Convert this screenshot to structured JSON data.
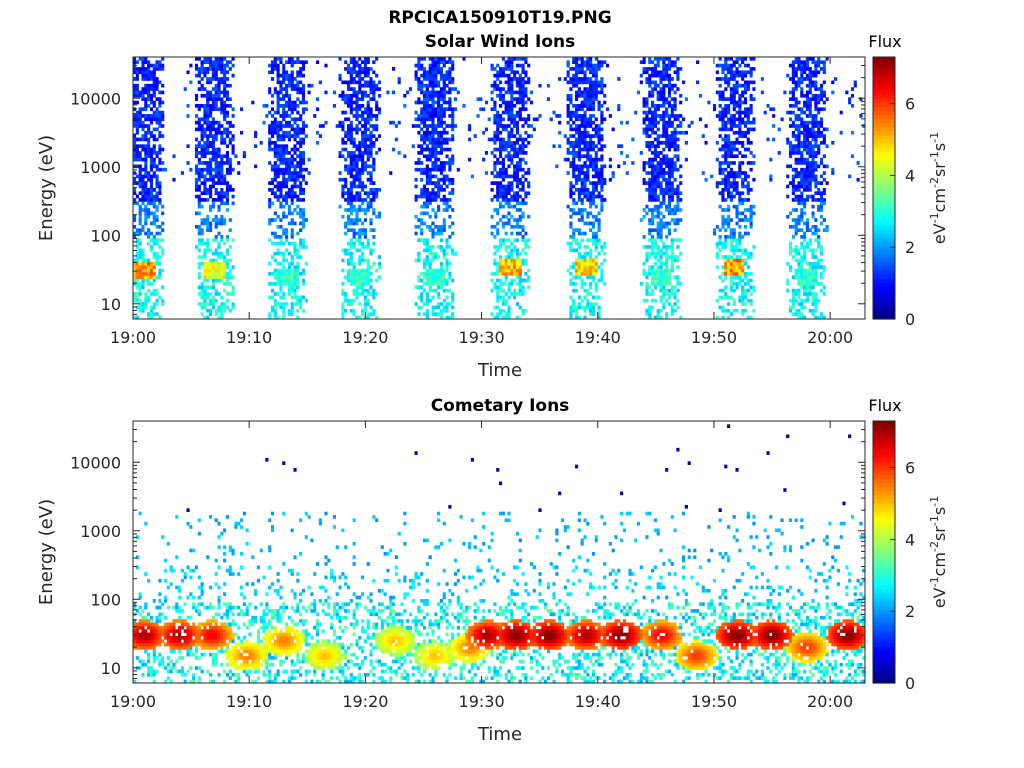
{
  "figure_title": "RPCICA150910T19.PNG",
  "chart_data": [
    {
      "type": "heatmap",
      "title": "Solar Wind Ions",
      "xlabel": "Time",
      "ylabel": "Energy (eV)",
      "y_scale": "log",
      "ylim": [
        6,
        40000
      ],
      "xlim": [
        "19:00",
        "20:03"
      ],
      "x_ticks": [
        "19:00",
        "19:10",
        "19:20",
        "19:30",
        "19:40",
        "19:50",
        "20:00"
      ],
      "y_ticks": [
        "10",
        "100",
        "1000",
        "10000"
      ],
      "colorbar": {
        "title": "Flux",
        "label": "eV-1cm-2sr-1s-1",
        "range": [
          0,
          7.3
        ],
        "ticks": [
          "0",
          "2",
          "4",
          "6"
        ],
        "colormap": "jet"
      },
      "sweeps": [
        {
          "center_min": 1.0,
          "peak_energy_ev": 30,
          "peak_flux": 6.0
        },
        {
          "center_min": 7.0,
          "peak_energy_ev": 30,
          "peak_flux": 5.0
        },
        {
          "center_min": 13.3,
          "peak_energy_ev": 25,
          "peak_flux": 3.5
        },
        {
          "center_min": 19.5,
          "peak_energy_ev": 25,
          "peak_flux": 3.5
        },
        {
          "center_min": 26.0,
          "peak_energy_ev": 25,
          "peak_flux": 3.5
        },
        {
          "center_min": 32.5,
          "peak_energy_ev": 33,
          "peak_flux": 5.8
        },
        {
          "center_min": 39.0,
          "peak_energy_ev": 33,
          "peak_flux": 5.5
        },
        {
          "center_min": 45.5,
          "peak_energy_ev": 25,
          "peak_flux": 3.5
        },
        {
          "center_min": 51.8,
          "peak_energy_ev": 35,
          "peak_flux": 6.0
        },
        {
          "center_min": 58.0,
          "peak_energy_ev": 25,
          "peak_flux": 3.5
        }
      ]
    },
    {
      "type": "heatmap",
      "title": "Cometary Ions",
      "xlabel": "Time",
      "ylabel": "Energy (eV)",
      "y_scale": "log",
      "ylim": [
        6,
        40000
      ],
      "xlim": [
        "19:00",
        "20:03"
      ],
      "x_ticks": [
        "19:00",
        "19:10",
        "19:20",
        "19:30",
        "19:40",
        "19:50",
        "20:00"
      ],
      "y_ticks": [
        "10",
        "100",
        "1000",
        "10000"
      ],
      "colorbar": {
        "title": "Flux",
        "label": "eV-1cm-2sr-1s-1",
        "range": [
          0,
          7.3
        ],
        "ticks": [
          "0",
          "2",
          "4",
          "6"
        ],
        "colormap": "jet"
      },
      "hot_spots": [
        {
          "center_min": 1.0,
          "energy_ev": 30,
          "flux": 7.0
        },
        {
          "center_min": 4.0,
          "energy_ev": 30,
          "flux": 7.0
        },
        {
          "center_min": 6.8,
          "energy_ev": 30,
          "flux": 6.5
        },
        {
          "center_min": 9.8,
          "energy_ev": 15,
          "flux": 5.5
        },
        {
          "center_min": 13.0,
          "energy_ev": 25,
          "flux": 5.5
        },
        {
          "center_min": 16.5,
          "energy_ev": 15,
          "flux": 5.0
        },
        {
          "center_min": 22.6,
          "energy_ev": 25,
          "flux": 5.0
        },
        {
          "center_min": 26.0,
          "energy_ev": 15,
          "flux": 5.0
        },
        {
          "center_min": 29.0,
          "energy_ev": 20,
          "flux": 5.5
        },
        {
          "center_min": 30.5,
          "energy_ev": 30,
          "flux": 7.0
        },
        {
          "center_min": 33.0,
          "energy_ev": 30,
          "flux": 7.3
        },
        {
          "center_min": 35.8,
          "energy_ev": 30,
          "flux": 7.3
        },
        {
          "center_min": 39.0,
          "energy_ev": 30,
          "flux": 7.0
        },
        {
          "center_min": 42.0,
          "energy_ev": 30,
          "flux": 7.3
        },
        {
          "center_min": 45.5,
          "energy_ev": 30,
          "flux": 6.5
        },
        {
          "center_min": 48.5,
          "energy_ev": 15,
          "flux": 6.0
        },
        {
          "center_min": 52.0,
          "energy_ev": 30,
          "flux": 7.3
        },
        {
          "center_min": 55.0,
          "energy_ev": 30,
          "flux": 7.3
        },
        {
          "center_min": 58.0,
          "energy_ev": 20,
          "flux": 6.0
        },
        {
          "center_min": 61.5,
          "energy_ev": 30,
          "flux": 7.3
        }
      ]
    }
  ]
}
